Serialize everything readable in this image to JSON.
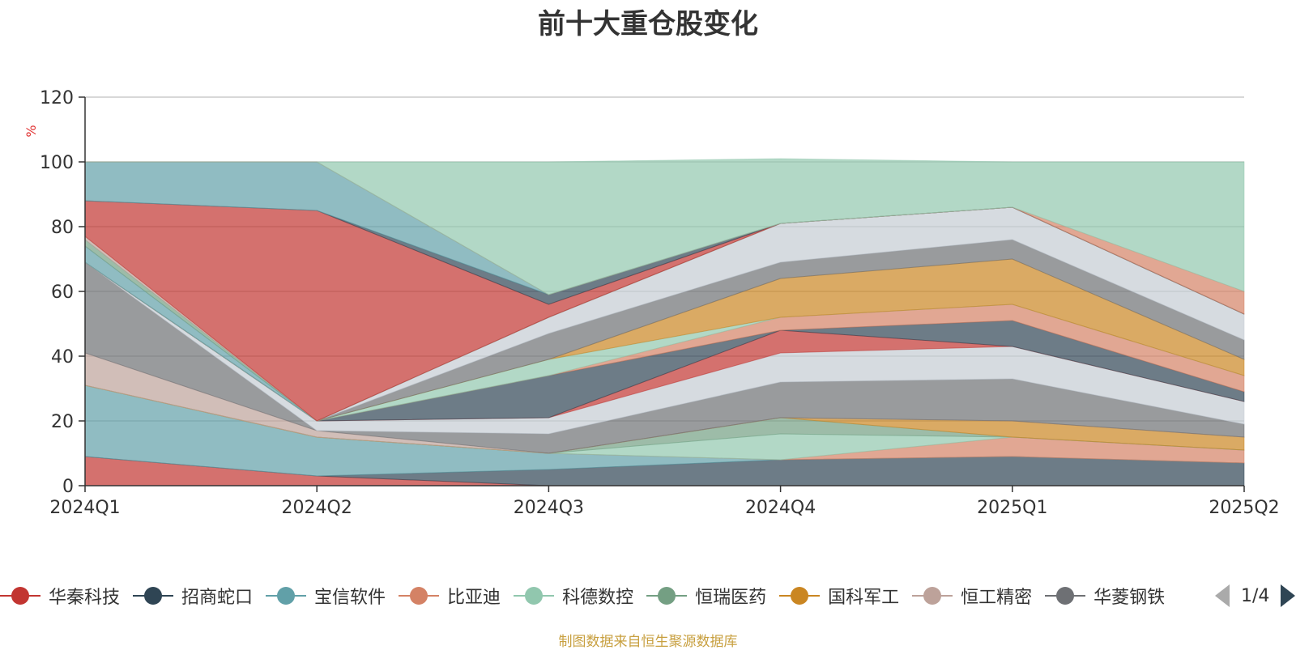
{
  "title": "前十大重仓股变化",
  "source": "制图数据来自恒生聚源数据库",
  "legend_page": "1/4",
  "chart_data": {
    "type": "area",
    "stacked": true,
    "ylabel": "%",
    "ylim": [
      0,
      120
    ],
    "yticks": [
      0,
      20,
      40,
      60,
      80,
      100,
      120
    ],
    "grid": true,
    "legend_position": "bottom",
    "categories": [
      "2024Q1",
      "2024Q2",
      "2024Q3",
      "2024Q4",
      "2025Q1",
      "2025Q2"
    ],
    "series": [
      {
        "name": "华秦科技",
        "color": "#c23531",
        "values": [
          9,
          3,
          0,
          0,
          0,
          0
        ]
      },
      {
        "name": "招商蛇口",
        "color": "#2f4554",
        "values": [
          0,
          0,
          5,
          8,
          9,
          7
        ]
      },
      {
        "name": "宝信软件",
        "color": "#61a0a8",
        "values": [
          22,
          12,
          5,
          0,
          0,
          0
        ]
      },
      {
        "name": "比亚迪",
        "color": "#d48265",
        "values": [
          0,
          0,
          0,
          0,
          6,
          4
        ]
      },
      {
        "name": "科德数控",
        "color": "#91c7ae",
        "values": [
          0,
          0,
          0,
          8,
          0,
          0
        ]
      },
      {
        "name": "恒瑞医药",
        "color": "#749f83",
        "values": [
          0,
          0,
          0,
          5,
          0,
          0
        ]
      },
      {
        "name": "国科军工",
        "color": "#ca8622",
        "values": [
          0,
          0,
          0,
          0,
          5,
          4
        ]
      },
      {
        "name": "恒工精密",
        "color": "#bda29a",
        "values": [
          10,
          2,
          0,
          0,
          0,
          0
        ]
      },
      {
        "name": "华菱钢铁",
        "color": "#6e7074",
        "values": [
          28,
          0,
          6,
          11,
          13,
          4
        ]
      },
      {
        "name": "",
        "color": "#c4ccd3",
        "values": [
          0,
          3,
          5,
          9,
          10,
          7
        ]
      },
      {
        "name": "",
        "color": "#c23531",
        "values": [
          0,
          0,
          0,
          7,
          0,
          0
        ]
      },
      {
        "name": "",
        "color": "#2f4554",
        "values": [
          0,
          0,
          13,
          0,
          8,
          3
        ]
      },
      {
        "name": "",
        "color": "#d48265",
        "values": [
          0,
          0,
          0,
          4,
          5,
          5
        ]
      },
      {
        "name": "",
        "color": "#91c7ae",
        "values": [
          0,
          0,
          5,
          0,
          0,
          0
        ]
      },
      {
        "name": "",
        "color": "#ca8622",
        "values": [
          0,
          0,
          0,
          12,
          14,
          5
        ]
      },
      {
        "name": "",
        "color": "#6e7074",
        "values": [
          0,
          0,
          8,
          5,
          6,
          6
        ]
      },
      {
        "name": "",
        "color": "#c4ccd3",
        "values": [
          0,
          0,
          5,
          12,
          10,
          8
        ]
      },
      {
        "name": "",
        "color": "#61a0a8",
        "values": [
          5,
          0,
          0,
          0,
          0,
          0
        ]
      },
      {
        "name": "",
        "color": "#749f83",
        "values": [
          2,
          0,
          0,
          0,
          0,
          0
        ]
      },
      {
        "name": "",
        "color": "#bda29a",
        "values": [
          1,
          0,
          0,
          0,
          0,
          0
        ]
      },
      {
        "name": "",
        "color": "#c23531",
        "values": [
          11,
          65,
          4,
          0,
          0,
          0
        ]
      },
      {
        "name": "",
        "color": "#2f4554",
        "values": [
          0,
          0,
          3,
          0,
          0,
          0
        ]
      },
      {
        "name": "",
        "color": "#61a0a8",
        "values": [
          12,
          15,
          0,
          0,
          0,
          0
        ]
      },
      {
        "name": "",
        "color": "#d48265",
        "values": [
          0,
          0,
          0,
          0,
          0,
          7
        ]
      },
      {
        "name": "",
        "color": "#91c7ae",
        "values": [
          0,
          0,
          41,
          20,
          14,
          40
        ]
      }
    ]
  }
}
